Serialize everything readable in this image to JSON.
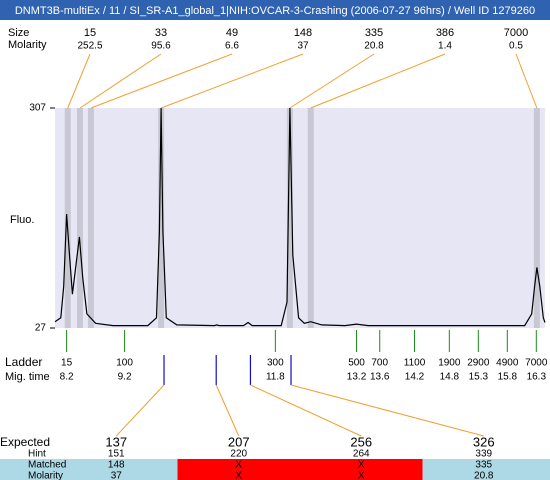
{
  "title": "DNMT3B-multiEx / 11 / SI_SR-A1_global_1|NIH:OVCAR-3-Crashing (2006-07-27 96hrs) / Well ID 1279260",
  "chart_data": {
    "type": "line",
    "y_label": "Fluo.",
    "xlim": [
      8.0,
      16.45
    ],
    "ylim": [
      27,
      307
    ],
    "yticks": [
      27,
      307
    ],
    "plot_color": "#e6e6f5",
    "x": [
      8.0,
      8.1,
      8.15,
      8.2,
      8.25,
      8.3,
      8.35,
      8.42,
      8.48,
      8.55,
      8.7,
      9.0,
      9.6,
      9.75,
      9.8,
      9.83,
      9.86,
      9.92,
      10.1,
      10.75,
      10.79,
      10.83,
      11.25,
      11.33,
      11.4,
      11.9,
      12.0,
      12.05,
      12.1,
      12.2,
      12.3,
      12.41,
      12.6,
      13.0,
      13.2,
      13.4,
      16.1,
      16.22,
      16.27,
      16.31,
      16.36,
      16.42,
      16.45
    ],
    "series": [
      {
        "color": "#000000",
        "values": [
          35,
          40,
          80,
          172,
          120,
          70,
          100,
          143,
          90,
          45,
          33,
          30,
          30,
          40,
          150,
          307,
          150,
          40,
          31,
          30,
          31,
          30,
          30,
          34,
          30,
          30,
          60,
          307,
          120,
          40,
          33,
          35,
          31,
          30,
          32,
          30,
          30,
          45,
          80,
          104,
          80,
          40,
          34
        ]
      }
    ]
  },
  "peaks": {
    "labels": [
      "Size",
      "Molarity"
    ],
    "band_color": "#c8c8d4",
    "items": [
      {
        "size": 15,
        "molarity": 252.5,
        "time": 8.22
      },
      {
        "size": 33,
        "molarity": 95.6,
        "time": 8.43
      },
      {
        "size": 49,
        "molarity": 6.6,
        "time": 8.62
      },
      {
        "size": 148,
        "molarity": 37,
        "time": 9.83
      },
      {
        "size": 335,
        "molarity": 20.8,
        "time": 12.05
      },
      {
        "size": 386,
        "molarity": 1.4,
        "time": 12.41
      },
      {
        "size": 7000,
        "molarity": 0.5,
        "time": 16.31
      }
    ]
  },
  "ladder": {
    "labels": [
      "Ladder",
      "Mig. time"
    ],
    "sizes": [
      15,
      100,
      300,
      500,
      700,
      1100,
      1900,
      2900,
      4900,
      7000
    ],
    "times": [
      8.2,
      9.2,
      11.8,
      13.2,
      13.6,
      14.2,
      14.8,
      15.3,
      15.8,
      16.3
    ]
  },
  "expected": {
    "labels": [
      "Expected",
      "Hint",
      "Matched",
      "Molarity"
    ],
    "items": [
      {
        "expected": 137,
        "color": "#e02020",
        "hint": 151,
        "matched": 148,
        "molarity": 37,
        "time": 9.88
      },
      {
        "expected": 207,
        "color": "#000000",
        "hint": 220,
        "matched": "X",
        "molarity": "X",
        "time": 10.78
      },
      {
        "expected": 256,
        "color": "#000000",
        "hint": 264,
        "matched": "X",
        "molarity": "X",
        "time": 11.37
      },
      {
        "expected": 326,
        "color": "#e02020",
        "hint": 339,
        "matched": 335,
        "molarity": 20.8,
        "time": 12.07
      }
    ]
  }
}
